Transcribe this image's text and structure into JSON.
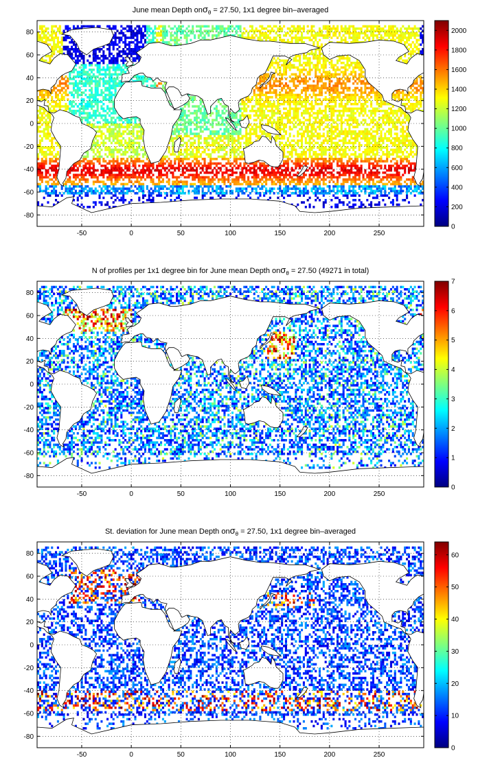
{
  "figure": {
    "background": "#ffffff",
    "land_color": "#ffffff",
    "coast_color": "#000000",
    "grid_style": "dotted",
    "colormap": "jet",
    "colormap_stops": [
      "#00007f",
      "#0000ff",
      "#007fff",
      "#00ffff",
      "#7fff7f",
      "#ffff00",
      "#ff7f00",
      "#ff0000",
      "#7f0000"
    ]
  },
  "chart_data": [
    {
      "type": "heatmap",
      "title_prefix": "June mean Depth on",
      "title_symbol": "σ",
      "title_subscript": "θ",
      "title_suffix": " = 27.50, 1x1 degree bin–averaged",
      "x_ticks": [
        -50,
        0,
        50,
        100,
        150,
        200,
        250
      ],
      "y_ticks": [
        -80,
        -60,
        -40,
        -20,
        0,
        20,
        40,
        60,
        80
      ],
      "xlim": [
        -95,
        295
      ],
      "ylim": [
        -90,
        90
      ],
      "grid": true,
      "colorbar": {
        "min": 0,
        "max": 2100,
        "ticks": [
          0,
          200,
          400,
          600,
          800,
          1000,
          1200,
          1400,
          1600,
          1800,
          2000
        ]
      },
      "pattern": "depth",
      "density": 0.62,
      "seed": 11
    },
    {
      "type": "heatmap",
      "title_prefix": "N of profiles per 1x1 degree bin for June mean Depth on",
      "title_symbol": "σ",
      "title_subscript": "θ",
      "title_suffix": " = 27.50 (49271 in total)",
      "x_ticks": [
        -50,
        0,
        50,
        100,
        150,
        200,
        250
      ],
      "y_ticks": [
        -80,
        -60,
        -40,
        -20,
        0,
        20,
        40,
        60,
        80
      ],
      "xlim": [
        -95,
        295
      ],
      "ylim": [
        -90,
        90
      ],
      "grid": true,
      "colorbar": {
        "min": 0,
        "max": 7,
        "ticks": [
          0,
          1,
          2,
          3,
          4,
          5,
          6,
          7
        ]
      },
      "pattern": "count",
      "density": 0.5,
      "seed": 23
    },
    {
      "type": "heatmap",
      "title_prefix": "St. deviation for June mean Depth on",
      "title_symbol": "σ",
      "title_subscript": "θ",
      "title_suffix": " = 27.50, 1x1 degree bin–averaged",
      "x_ticks": [
        -50,
        0,
        50,
        100,
        150,
        200,
        250
      ],
      "y_ticks": [
        -80,
        -60,
        -40,
        -20,
        0,
        20,
        40,
        60,
        80
      ],
      "xlim": [
        -95,
        295
      ],
      "ylim": [
        -90,
        90
      ],
      "grid": true,
      "colorbar": {
        "min": 0,
        "max": 64,
        "ticks": [
          0,
          10,
          20,
          30,
          40,
          50,
          60
        ]
      },
      "pattern": "std",
      "density": 0.45,
      "seed": 37
    }
  ]
}
